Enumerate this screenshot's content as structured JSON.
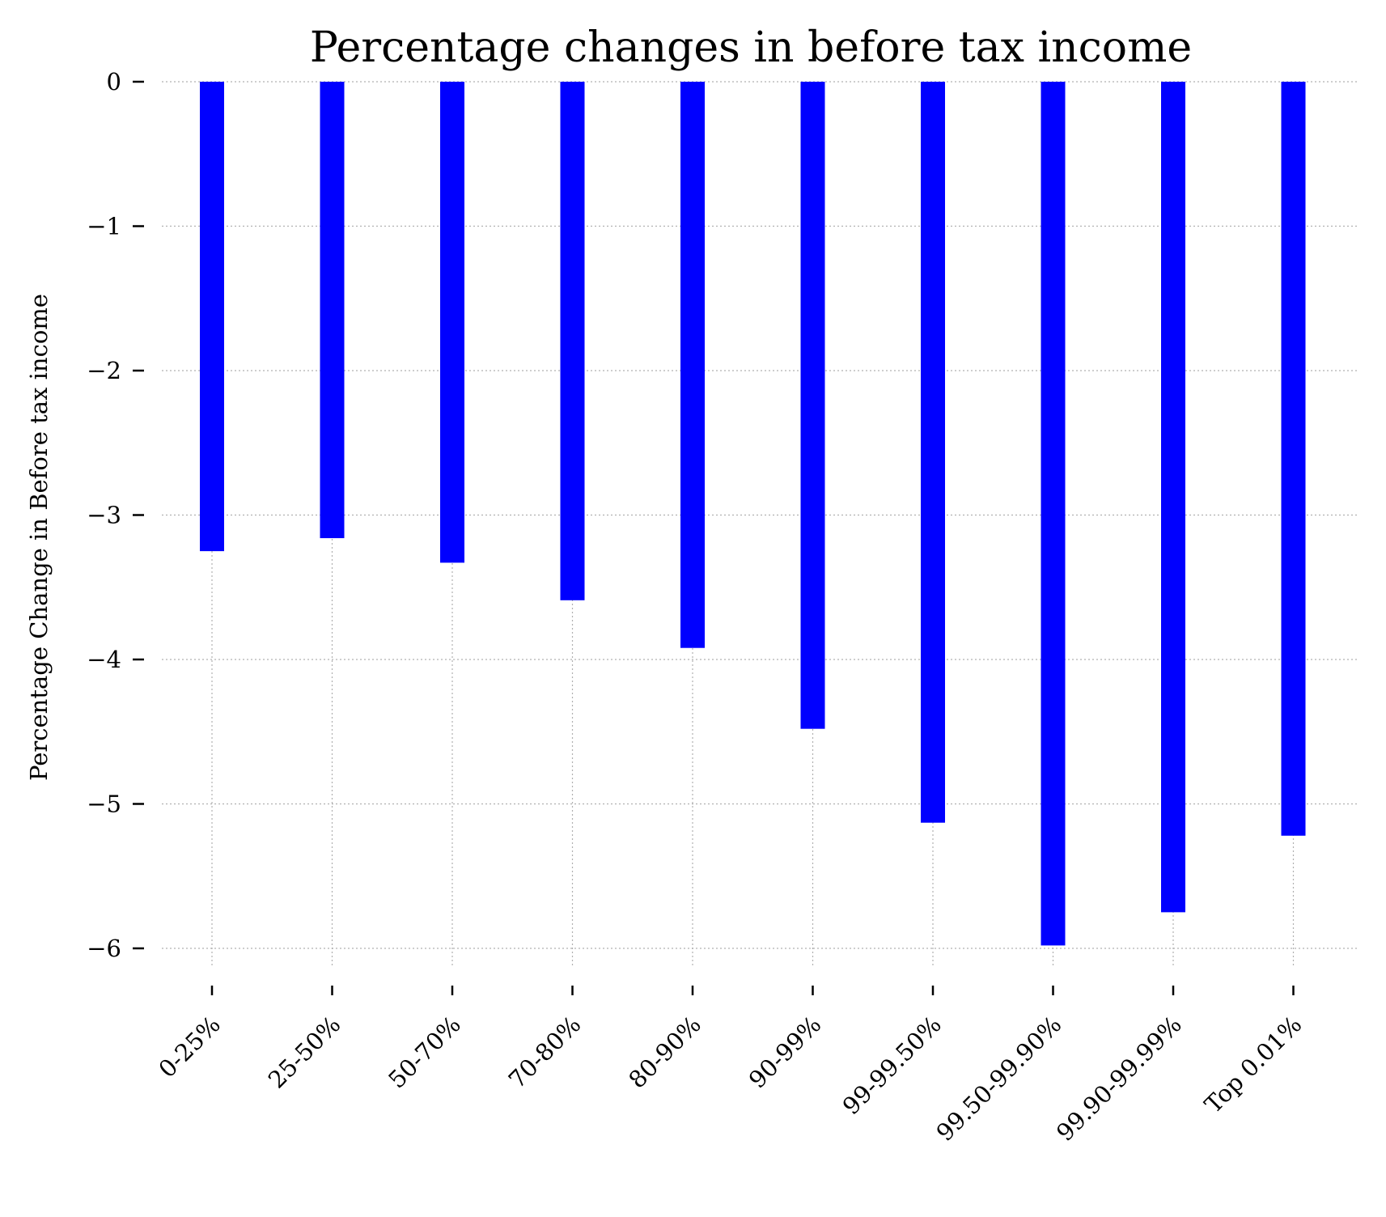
{
  "chart_data": {
    "type": "bar",
    "title": "Percentage changes in before tax income",
    "xlabel": "",
    "ylabel": "Percentage Change in Before tax income",
    "categories": [
      "0-25%",
      "25-50%",
      "50-70%",
      "70-80%",
      "80-90%",
      "90-99%",
      "99-99.50%",
      "99.50-99.90%",
      "99.90-99.99%",
      "Top 0.01%"
    ],
    "values": [
      -3.25,
      -3.16,
      -3.33,
      -3.59,
      -3.92,
      -4.48,
      -5.13,
      -5.98,
      -5.75,
      -5.22
    ],
    "ylim": [
      -6.28,
      0
    ],
    "yticks": [
      0,
      -1,
      -2,
      -3,
      -4,
      -5,
      -6
    ],
    "ytick_labels": [
      "0",
      "−1",
      "−2",
      "−3",
      "−4",
      "−5",
      "−6"
    ],
    "bar_color": "#0000ff",
    "grid": true,
    "legend": false
  }
}
